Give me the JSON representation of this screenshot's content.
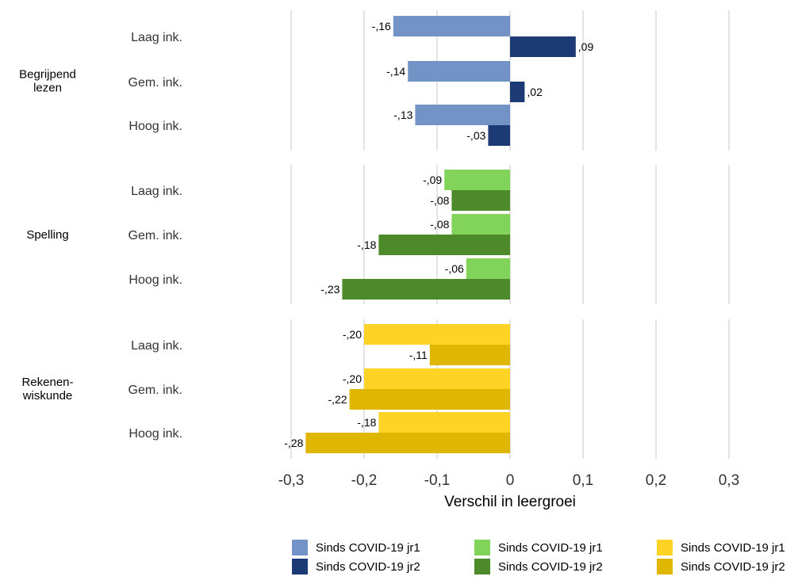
{
  "chart_data": {
    "type": "bar",
    "orientation": "horizontal",
    "xlabel": "Verschil in leergroei",
    "xlim": [
      -0.3,
      0.3
    ],
    "xticks": [
      -0.3,
      -0.2,
      -0.1,
      0,
      0.1,
      0.2,
      0.3
    ],
    "xtick_labels": [
      "-0,3",
      "-0,2",
      "-0,1",
      "0",
      "0,1",
      "0,2",
      "0,3"
    ],
    "grid": true,
    "legend_position": "bottom",
    "subcategories": [
      "Laag ink.",
      "Gem. ink.",
      "Hoog ink."
    ],
    "groups": [
      {
        "name": "Begrijpend lezen",
        "label_lines": [
          "Begrijpend",
          "lezen"
        ],
        "colors": {
          "jr1": "#7393c6",
          "jr2": "#1c3a73"
        },
        "series": [
          {
            "name": "Sinds COVID-19 jr1",
            "values": [
              -0.16,
              -0.14,
              -0.13
            ],
            "labels": [
              "-,16",
              "-,14",
              "-,13"
            ]
          },
          {
            "name": "Sinds COVID-19 jr2",
            "values": [
              0.09,
              0.02,
              -0.03
            ],
            "labels": [
              ",09",
              ",02",
              "-,03"
            ]
          }
        ]
      },
      {
        "name": "Spelling",
        "label_lines": [
          "Spelling"
        ],
        "colors": {
          "jr1": "#82d35a",
          "jr2": "#4d8a2a"
        },
        "series": [
          {
            "name": "Sinds COVID-19 jr1",
            "values": [
              -0.09,
              -0.08,
              -0.06
            ],
            "labels": [
              "-,09",
              "-,08",
              "-,06"
            ]
          },
          {
            "name": "Sinds COVID-19 jr2",
            "values": [
              -0.08,
              -0.18,
              -0.23
            ],
            "labels": [
              "-,08",
              "-,18",
              "-,23"
            ]
          }
        ]
      },
      {
        "name": "Rekenen-wiskunde",
        "label_lines": [
          "Rekenen-",
          "wiskunde"
        ],
        "colors": {
          "jr1": "#fdd326",
          "jr2": "#e0b700"
        },
        "series": [
          {
            "name": "Sinds COVID-19 jr1",
            "values": [
              -0.2,
              -0.2,
              -0.18
            ],
            "labels": [
              "-,20",
              "-,20",
              "-,18"
            ]
          },
          {
            "name": "Sinds COVID-19 jr2",
            "values": [
              -0.11,
              -0.22,
              -0.28
            ],
            "labels": [
              "-,11",
              "-,22",
              "-,28"
            ]
          }
        ]
      }
    ]
  }
}
